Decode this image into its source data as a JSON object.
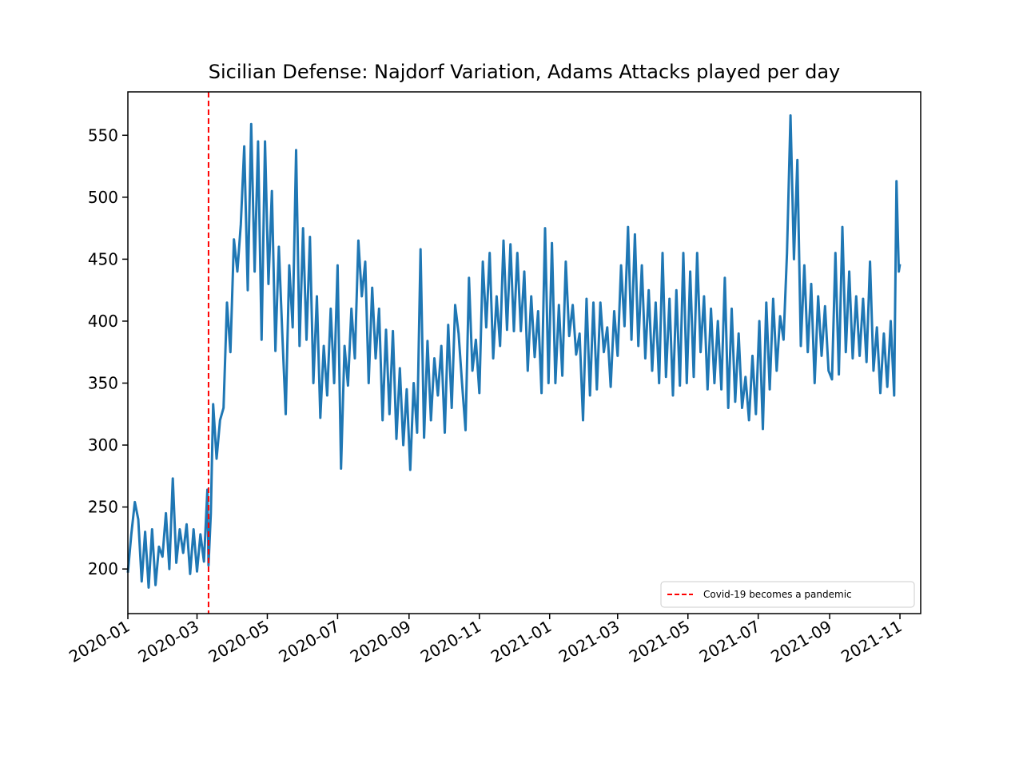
{
  "chart_data": {
    "type": "line",
    "title": "Sicilian Defense: Najdorf Variation, Adams Attacks played per day",
    "xlabel": "",
    "ylabel": "",
    "x_axis_type": "date",
    "xlim": [
      "2020-01-01",
      "2021-11-19"
    ],
    "ylim": [
      164,
      585
    ],
    "x_ticks": [
      "2020-01",
      "2020-03",
      "2020-05",
      "2020-07",
      "2020-09",
      "2020-11",
      "2021-01",
      "2021-03",
      "2021-05",
      "2021-07",
      "2021-09",
      "2021-11"
    ],
    "y_ticks": [
      200,
      250,
      300,
      350,
      400,
      450,
      500,
      550
    ],
    "grid": false,
    "legend": {
      "placement": "lower right",
      "entries": [
        "Covid-19 becomes a pandemic"
      ]
    },
    "series": [
      {
        "name": "",
        "color": "#1f77b4",
        "points": [
          [
            "2020-01-01",
            197
          ],
          [
            "2020-01-04",
            228
          ],
          [
            "2020-01-07",
            254
          ],
          [
            "2020-01-10",
            240
          ],
          [
            "2020-01-13",
            190
          ],
          [
            "2020-01-16",
            230
          ],
          [
            "2020-01-19",
            185
          ],
          [
            "2020-01-22",
            232
          ],
          [
            "2020-01-25",
            187
          ],
          [
            "2020-01-28",
            218
          ],
          [
            "2020-01-31",
            210
          ],
          [
            "2020-02-03",
            245
          ],
          [
            "2020-02-06",
            200
          ],
          [
            "2020-02-09",
            273
          ],
          [
            "2020-02-12",
            205
          ],
          [
            "2020-02-15",
            232
          ],
          [
            "2020-02-18",
            213
          ],
          [
            "2020-02-21",
            236
          ],
          [
            "2020-02-24",
            196
          ],
          [
            "2020-02-27",
            232
          ],
          [
            "2020-03-01",
            198
          ],
          [
            "2020-03-04",
            228
          ],
          [
            "2020-03-07",
            206
          ],
          [
            "2020-03-10",
            264
          ],
          [
            "2020-03-11",
            203
          ],
          [
            "2020-03-13",
            245
          ],
          [
            "2020-03-15",
            333
          ],
          [
            "2020-03-18",
            289
          ],
          [
            "2020-03-21",
            320
          ],
          [
            "2020-03-24",
            330
          ],
          [
            "2020-03-27",
            415
          ],
          [
            "2020-03-30",
            375
          ],
          [
            "2020-04-02",
            466
          ],
          [
            "2020-04-05",
            440
          ],
          [
            "2020-04-08",
            478
          ],
          [
            "2020-04-11",
            541
          ],
          [
            "2020-04-14",
            425
          ],
          [
            "2020-04-17",
            559
          ],
          [
            "2020-04-20",
            440
          ],
          [
            "2020-04-23",
            545
          ],
          [
            "2020-04-26",
            385
          ],
          [
            "2020-04-29",
            545
          ],
          [
            "2020-05-02",
            430
          ],
          [
            "2020-05-05",
            505
          ],
          [
            "2020-05-08",
            376
          ],
          [
            "2020-05-11",
            460
          ],
          [
            "2020-05-14",
            390
          ],
          [
            "2020-05-17",
            325
          ],
          [
            "2020-05-20",
            445
          ],
          [
            "2020-05-23",
            395
          ],
          [
            "2020-05-26",
            538
          ],
          [
            "2020-05-29",
            380
          ],
          [
            "2020-06-01",
            475
          ],
          [
            "2020-06-04",
            385
          ],
          [
            "2020-06-07",
            468
          ],
          [
            "2020-06-10",
            350
          ],
          [
            "2020-06-13",
            420
          ],
          [
            "2020-06-16",
            322
          ],
          [
            "2020-06-19",
            380
          ],
          [
            "2020-06-22",
            340
          ],
          [
            "2020-06-25",
            410
          ],
          [
            "2020-06-28",
            350
          ],
          [
            "2020-07-01",
            445
          ],
          [
            "2020-07-04",
            281
          ],
          [
            "2020-07-07",
            380
          ],
          [
            "2020-07-10",
            348
          ],
          [
            "2020-07-13",
            410
          ],
          [
            "2020-07-16",
            370
          ],
          [
            "2020-07-19",
            465
          ],
          [
            "2020-07-22",
            420
          ],
          [
            "2020-07-25",
            448
          ],
          [
            "2020-07-28",
            350
          ],
          [
            "2020-07-31",
            427
          ],
          [
            "2020-08-03",
            370
          ],
          [
            "2020-08-06",
            410
          ],
          [
            "2020-08-09",
            320
          ],
          [
            "2020-08-12",
            393
          ],
          [
            "2020-08-15",
            325
          ],
          [
            "2020-08-18",
            392
          ],
          [
            "2020-08-21",
            305
          ],
          [
            "2020-08-24",
            362
          ],
          [
            "2020-08-27",
            300
          ],
          [
            "2020-08-30",
            345
          ],
          [
            "2020-09-02",
            280
          ],
          [
            "2020-09-05",
            350
          ],
          [
            "2020-09-08",
            310
          ],
          [
            "2020-09-11",
            458
          ],
          [
            "2020-09-14",
            306
          ],
          [
            "2020-09-17",
            384
          ],
          [
            "2020-09-20",
            320
          ],
          [
            "2020-09-23",
            370
          ],
          [
            "2020-09-26",
            340
          ],
          [
            "2020-09-29",
            380
          ],
          [
            "2020-10-02",
            310
          ],
          [
            "2020-10-05",
            397
          ],
          [
            "2020-10-08",
            330
          ],
          [
            "2020-10-11",
            413
          ],
          [
            "2020-10-14",
            390
          ],
          [
            "2020-10-17",
            350
          ],
          [
            "2020-10-20",
            312
          ],
          [
            "2020-10-23",
            435
          ],
          [
            "2020-10-26",
            360
          ],
          [
            "2020-10-29",
            385
          ],
          [
            "2020-11-01",
            342
          ],
          [
            "2020-11-04",
            448
          ],
          [
            "2020-11-07",
            395
          ],
          [
            "2020-11-10",
            455
          ],
          [
            "2020-11-13",
            370
          ],
          [
            "2020-11-16",
            420
          ],
          [
            "2020-11-19",
            380
          ],
          [
            "2020-11-22",
            465
          ],
          [
            "2020-11-25",
            393
          ],
          [
            "2020-11-28",
            462
          ],
          [
            "2020-12-01",
            392
          ],
          [
            "2020-12-04",
            455
          ],
          [
            "2020-12-07",
            392
          ],
          [
            "2020-12-10",
            440
          ],
          [
            "2020-12-13",
            360
          ],
          [
            "2020-12-16",
            420
          ],
          [
            "2020-12-19",
            371
          ],
          [
            "2020-12-22",
            408
          ],
          [
            "2020-12-25",
            342
          ],
          [
            "2020-12-28",
            475
          ],
          [
            "2020-12-31",
            350
          ],
          [
            "2021-01-03",
            463
          ],
          [
            "2021-01-06",
            350
          ],
          [
            "2021-01-09",
            413
          ],
          [
            "2021-01-12",
            356
          ],
          [
            "2021-01-15",
            448
          ],
          [
            "2021-01-18",
            388
          ],
          [
            "2021-01-21",
            413
          ],
          [
            "2021-01-24",
            373
          ],
          [
            "2021-01-27",
            390
          ],
          [
            "2021-01-30",
            320
          ],
          [
            "2021-02-02",
            418
          ],
          [
            "2021-02-05",
            340
          ],
          [
            "2021-02-08",
            415
          ],
          [
            "2021-02-11",
            345
          ],
          [
            "2021-02-14",
            415
          ],
          [
            "2021-02-17",
            375
          ],
          [
            "2021-02-20",
            395
          ],
          [
            "2021-02-23",
            347
          ],
          [
            "2021-02-26",
            408
          ],
          [
            "2021-03-01",
            372
          ],
          [
            "2021-03-04",
            445
          ],
          [
            "2021-03-07",
            396
          ],
          [
            "2021-03-10",
            476
          ],
          [
            "2021-03-13",
            385
          ],
          [
            "2021-03-16",
            470
          ],
          [
            "2021-03-19",
            380
          ],
          [
            "2021-03-22",
            445
          ],
          [
            "2021-03-25",
            370
          ],
          [
            "2021-03-28",
            425
          ],
          [
            "2021-03-31",
            360
          ],
          [
            "2021-04-03",
            415
          ],
          [
            "2021-04-06",
            350
          ],
          [
            "2021-04-09",
            455
          ],
          [
            "2021-04-12",
            355
          ],
          [
            "2021-04-15",
            418
          ],
          [
            "2021-04-18",
            340
          ],
          [
            "2021-04-21",
            425
          ],
          [
            "2021-04-24",
            348
          ],
          [
            "2021-04-27",
            455
          ],
          [
            "2021-04-30",
            350
          ],
          [
            "2021-05-03",
            440
          ],
          [
            "2021-05-06",
            355
          ],
          [
            "2021-05-09",
            455
          ],
          [
            "2021-05-12",
            375
          ],
          [
            "2021-05-15",
            420
          ],
          [
            "2021-05-18",
            345
          ],
          [
            "2021-05-21",
            410
          ],
          [
            "2021-05-24",
            350
          ],
          [
            "2021-05-27",
            400
          ],
          [
            "2021-05-30",
            345
          ],
          [
            "2021-06-02",
            435
          ],
          [
            "2021-06-05",
            330
          ],
          [
            "2021-06-08",
            410
          ],
          [
            "2021-06-11",
            335
          ],
          [
            "2021-06-14",
            390
          ],
          [
            "2021-06-17",
            330
          ],
          [
            "2021-06-20",
            355
          ],
          [
            "2021-06-23",
            320
          ],
          [
            "2021-06-26",
            372
          ],
          [
            "2021-06-29",
            325
          ],
          [
            "2021-07-02",
            400
          ],
          [
            "2021-07-05",
            313
          ],
          [
            "2021-07-08",
            415
          ],
          [
            "2021-07-11",
            345
          ],
          [
            "2021-07-14",
            418
          ],
          [
            "2021-07-17",
            360
          ],
          [
            "2021-07-20",
            404
          ],
          [
            "2021-07-23",
            385
          ],
          [
            "2021-07-26",
            455
          ],
          [
            "2021-07-29",
            566
          ],
          [
            "2021-08-01",
            450
          ],
          [
            "2021-08-04",
            530
          ],
          [
            "2021-08-07",
            380
          ],
          [
            "2021-08-10",
            445
          ],
          [
            "2021-08-13",
            375
          ],
          [
            "2021-08-16",
            430
          ],
          [
            "2021-08-19",
            350
          ],
          [
            "2021-08-22",
            420
          ],
          [
            "2021-08-25",
            372
          ],
          [
            "2021-08-28",
            412
          ],
          [
            "2021-08-31",
            360
          ],
          [
            "2021-09-03",
            353
          ],
          [
            "2021-09-06",
            455
          ],
          [
            "2021-09-09",
            357
          ],
          [
            "2021-09-12",
            476
          ],
          [
            "2021-09-15",
            375
          ],
          [
            "2021-09-18",
            440
          ],
          [
            "2021-09-21",
            370
          ],
          [
            "2021-09-24",
            420
          ],
          [
            "2021-09-27",
            372
          ],
          [
            "2021-09-30",
            418
          ],
          [
            "2021-10-03",
            367
          ],
          [
            "2021-10-06",
            448
          ],
          [
            "2021-10-09",
            360
          ],
          [
            "2021-10-12",
            395
          ],
          [
            "2021-10-15",
            342
          ],
          [
            "2021-10-18",
            390
          ],
          [
            "2021-10-21",
            347
          ],
          [
            "2021-10-24",
            400
          ],
          [
            "2021-10-27",
            340
          ],
          [
            "2021-10-29",
            513
          ],
          [
            "2021-10-31",
            440
          ],
          [
            "2021-11-01",
            446
          ]
        ]
      },
      {
        "name": "Covid-19 becomes a pandemic",
        "color": "#ff0000",
        "style": "dashed",
        "vertical_line_x": "2020-03-11"
      }
    ]
  }
}
